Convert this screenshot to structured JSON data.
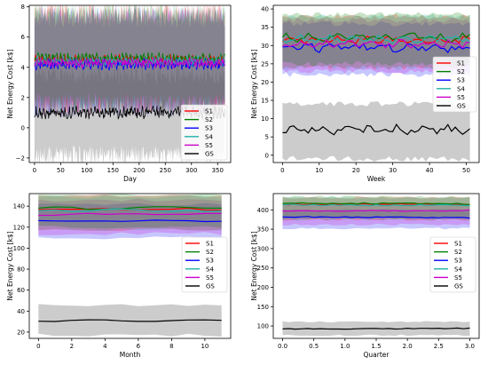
{
  "chart_data": [
    {
      "type": "line",
      "xlabel": "Day",
      "ylabel": "Net Energy Cost [k$]",
      "xlim": [
        -10,
        375
      ],
      "ylim": [
        -2.3,
        8.1
      ],
      "xticks": [
        0,
        50,
        100,
        150,
        200,
        250,
        300,
        350
      ],
      "yticks": [
        -2,
        0,
        2,
        4,
        6,
        8
      ],
      "x_range": [
        0,
        364
      ],
      "legend_position": "lower-right",
      "series": [
        {
          "name": "S1",
          "color": "#ff0000",
          "mean": 4.5,
          "noise": 0.25,
          "band": [
            1.5,
            7.6
          ]
        },
        {
          "name": "S2",
          "color": "#008000",
          "mean": 4.6,
          "noise": 0.25,
          "band": [
            1.6,
            7.6
          ]
        },
        {
          "name": "S3",
          "color": "#0000ff",
          "mean": 4.2,
          "noise": 0.25,
          "band": [
            1.3,
            7.3
          ]
        },
        {
          "name": "S4",
          "color": "#20b2aa",
          "mean": 4.4,
          "noise": 0.25,
          "band": [
            1.5,
            7.5
          ]
        },
        {
          "name": "S5",
          "color": "#cc00cc",
          "mean": 4.3,
          "noise": 0.25,
          "band": [
            1.4,
            7.4
          ]
        },
        {
          "name": "GS",
          "color": "#000000",
          "mean": 1.0,
          "noise": 0.3,
          "band": [
            -1.8,
            3.5
          ]
        }
      ]
    },
    {
      "type": "line",
      "xlabel": "Week",
      "ylabel": "Net Energy Cost [k$]",
      "xlim": [
        -2.5,
        53.5
      ],
      "ylim": [
        -2,
        41
      ],
      "xticks": [
        0,
        10,
        20,
        30,
        40,
        50
      ],
      "yticks": [
        0,
        5,
        10,
        15,
        20,
        25,
        30,
        35,
        40
      ],
      "x_range": [
        0,
        51
      ],
      "legend_position": "center-right",
      "series": [
        {
          "name": "S1",
          "color": "#ff0000",
          "mean": 31.5,
          "noise": 0.8,
          "band": [
            24,
            38
          ]
        },
        {
          "name": "S2",
          "color": "#008000",
          "mean": 32.2,
          "noise": 0.8,
          "band": [
            25,
            38.5
          ]
        },
        {
          "name": "S3",
          "color": "#0000ff",
          "mean": 29.5,
          "noise": 0.9,
          "band": [
            22,
            36
          ]
        },
        {
          "name": "S4",
          "color": "#20b2aa",
          "mean": 31.8,
          "noise": 0.8,
          "band": [
            24,
            38
          ]
        },
        {
          "name": "S5",
          "color": "#cc00cc",
          "mean": 30.5,
          "noise": 0.8,
          "band": [
            23,
            37
          ]
        },
        {
          "name": "GS",
          "color": "#000000",
          "mean": 7.0,
          "noise": 0.9,
          "band": [
            -1,
            14
          ]
        }
      ]
    },
    {
      "type": "line",
      "xlabel": "Month",
      "ylabel": "Net Energy Cost [k$]",
      "xlim": [
        -0.55,
        11.55
      ],
      "ylim": [
        14,
        152
      ],
      "xticks": [
        0,
        2,
        4,
        6,
        8,
        10
      ],
      "yticks": [
        20,
        40,
        60,
        80,
        100,
        120,
        140
      ],
      "x_range": [
        0,
        11
      ],
      "legend_position": "center-right",
      "series": [
        {
          "name": "S1",
          "color": "#ff0000",
          "mean": 137,
          "noise": 1.0,
          "band": [
            118,
            150
          ]
        },
        {
          "name": "S2",
          "color": "#008000",
          "mean": 138,
          "noise": 1.0,
          "band": [
            120,
            151
          ]
        },
        {
          "name": "S3",
          "color": "#0000ff",
          "mean": 126,
          "noise": 1.0,
          "band": [
            110,
            142
          ]
        },
        {
          "name": "S4",
          "color": "#20b2aa",
          "mean": 136,
          "noise": 1.0,
          "band": [
            118,
            149
          ]
        },
        {
          "name": "S5",
          "color": "#cc00cc",
          "mean": 132,
          "noise": 1.0,
          "band": [
            114,
            146
          ]
        },
        {
          "name": "GS",
          "color": "#000000",
          "mean": 31,
          "noise": 0.8,
          "band": [
            17,
            46
          ]
        }
      ]
    },
    {
      "type": "line",
      "xlabel": "Quarter",
      "ylabel": "Net Energy Cost [k$]",
      "xlim": [
        -0.15,
        3.15
      ],
      "ylim": [
        68,
        442
      ],
      "xticks": [
        0.0,
        0.5,
        1.0,
        1.5,
        2.0,
        2.5,
        3.0
      ],
      "yticks": [
        100,
        150,
        200,
        250,
        300,
        350,
        400
      ],
      "x_range": [
        0,
        3
      ],
      "legend_position": "center-right",
      "series": [
        {
          "name": "S1",
          "color": "#ff0000",
          "mean": 414,
          "noise": 1.5,
          "band": [
            375,
            432
          ]
        },
        {
          "name": "S2",
          "color": "#008000",
          "mean": 416,
          "noise": 1.5,
          "band": [
            378,
            434
          ]
        },
        {
          "name": "S3",
          "color": "#0000ff",
          "mean": 381,
          "noise": 1.5,
          "band": [
            352,
            400
          ]
        },
        {
          "name": "S4",
          "color": "#20b2aa",
          "mean": 413,
          "noise": 1.5,
          "band": [
            375,
            431
          ]
        },
        {
          "name": "S5",
          "color": "#cc00cc",
          "mean": 398,
          "noise": 1.5,
          "band": [
            362,
            416
          ]
        },
        {
          "name": "GS",
          "color": "#000000",
          "mean": 93,
          "noise": 1.0,
          "band": [
            76,
            111
          ]
        }
      ]
    }
  ]
}
